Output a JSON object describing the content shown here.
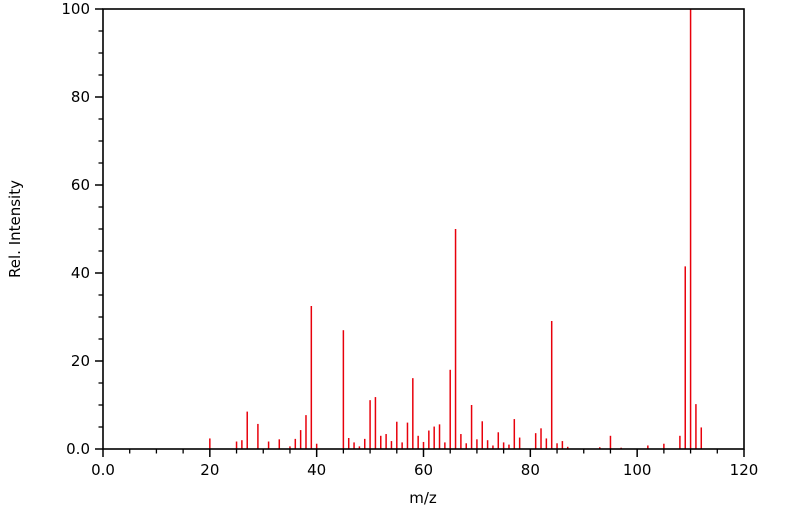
{
  "chart_data": {
    "type": "bar",
    "subtype": "mass-spectrum-stick-plot",
    "title": "",
    "xlabel": "m/z",
    "ylabel": "Rel. Intensity",
    "xlim": [
      0,
      120
    ],
    "ylim": [
      0,
      100
    ],
    "grid": false,
    "legend": false,
    "minor_tick_step": 5,
    "x_major_ticks": [
      {
        "value": 0,
        "label": "0.0"
      },
      {
        "value": 20,
        "label": "20"
      },
      {
        "value": 40,
        "label": "40"
      },
      {
        "value": 60,
        "label": "60"
      },
      {
        "value": 80,
        "label": "80"
      },
      {
        "value": 100,
        "label": "100"
      },
      {
        "value": 120,
        "label": "120"
      }
    ],
    "y_major_ticks": [
      {
        "value": 0,
        "label": "0.0"
      },
      {
        "value": 20,
        "label": "20"
      },
      {
        "value": 40,
        "label": "40"
      },
      {
        "value": 60,
        "label": "60"
      },
      {
        "value": 80,
        "label": "80"
      },
      {
        "value": 100,
        "label": "100"
      }
    ],
    "peak_color": "#e8000b",
    "axis_color": "#000000",
    "background_color": "#ffffff",
    "peaks": [
      {
        "mz": 20,
        "intensity": 2.4
      },
      {
        "mz": 25,
        "intensity": 1.7
      },
      {
        "mz": 26,
        "intensity": 2.0
      },
      {
        "mz": 27,
        "intensity": 8.5
      },
      {
        "mz": 29,
        "intensity": 5.7
      },
      {
        "mz": 31,
        "intensity": 1.7
      },
      {
        "mz": 33,
        "intensity": 2.2
      },
      {
        "mz": 35,
        "intensity": 0.6
      },
      {
        "mz": 36,
        "intensity": 2.3
      },
      {
        "mz": 37,
        "intensity": 4.3
      },
      {
        "mz": 38,
        "intensity": 7.7
      },
      {
        "mz": 39,
        "intensity": 32.5
      },
      {
        "mz": 40,
        "intensity": 1.2
      },
      {
        "mz": 45,
        "intensity": 27.0
      },
      {
        "mz": 46,
        "intensity": 2.5
      },
      {
        "mz": 47,
        "intensity": 1.5
      },
      {
        "mz": 48,
        "intensity": 0.6
      },
      {
        "mz": 49,
        "intensity": 2.3
      },
      {
        "mz": 50,
        "intensity": 11.1
      },
      {
        "mz": 51,
        "intensity": 11.8
      },
      {
        "mz": 52,
        "intensity": 3.0
      },
      {
        "mz": 53,
        "intensity": 3.4
      },
      {
        "mz": 54,
        "intensity": 1.8
      },
      {
        "mz": 55,
        "intensity": 6.2
      },
      {
        "mz": 56,
        "intensity": 1.5
      },
      {
        "mz": 57,
        "intensity": 6.0
      },
      {
        "mz": 58,
        "intensity": 16.1
      },
      {
        "mz": 59,
        "intensity": 3.0
      },
      {
        "mz": 60,
        "intensity": 1.6
      },
      {
        "mz": 61,
        "intensity": 4.2
      },
      {
        "mz": 62,
        "intensity": 5.1
      },
      {
        "mz": 63,
        "intensity": 5.6
      },
      {
        "mz": 64,
        "intensity": 1.5
      },
      {
        "mz": 65,
        "intensity": 18.0
      },
      {
        "mz": 66,
        "intensity": 50.0
      },
      {
        "mz": 67,
        "intensity": 3.4
      },
      {
        "mz": 68,
        "intensity": 1.3
      },
      {
        "mz": 69,
        "intensity": 10.0
      },
      {
        "mz": 70,
        "intensity": 2.2
      },
      {
        "mz": 71,
        "intensity": 6.3
      },
      {
        "mz": 72,
        "intensity": 2.0
      },
      {
        "mz": 73,
        "intensity": 0.8
      },
      {
        "mz": 74,
        "intensity": 3.8
      },
      {
        "mz": 75,
        "intensity": 1.5
      },
      {
        "mz": 76,
        "intensity": 1.0
      },
      {
        "mz": 77,
        "intensity": 6.8
      },
      {
        "mz": 78,
        "intensity": 2.6
      },
      {
        "mz": 81,
        "intensity": 3.6
      },
      {
        "mz": 82,
        "intensity": 4.7
      },
      {
        "mz": 83,
        "intensity": 2.4
      },
      {
        "mz": 84,
        "intensity": 29.1
      },
      {
        "mz": 85,
        "intensity": 1.3
      },
      {
        "mz": 86,
        "intensity": 1.8
      },
      {
        "mz": 87,
        "intensity": 0.5
      },
      {
        "mz": 93,
        "intensity": 0.4
      },
      {
        "mz": 95,
        "intensity": 3.0
      },
      {
        "mz": 97,
        "intensity": 0.3
      },
      {
        "mz": 102,
        "intensity": 0.8
      },
      {
        "mz": 105,
        "intensity": 1.2
      },
      {
        "mz": 108,
        "intensity": 3.0
      },
      {
        "mz": 109,
        "intensity": 41.5
      },
      {
        "mz": 110,
        "intensity": 100.0
      },
      {
        "mz": 111,
        "intensity": 10.2
      },
      {
        "mz": 112,
        "intensity": 4.9
      }
    ]
  }
}
